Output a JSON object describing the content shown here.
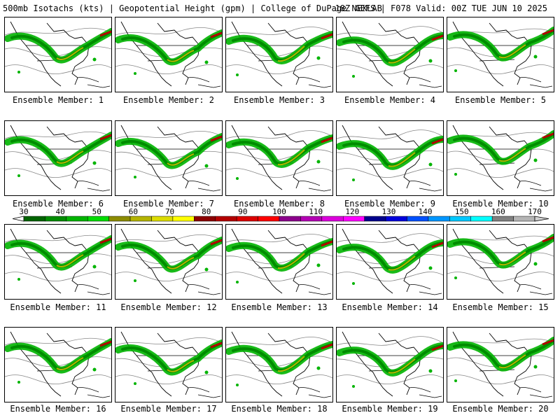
{
  "header": {
    "title_left": "500mb Isotachs (kts) | Geopotential Height (gpm) | College of DuPage NEXLAB",
    "title_right": "18Z GEFS | F078 Valid: 00Z TUE JUN 10 2025"
  },
  "members": [
    {
      "label": "Ensemble Member: 1"
    },
    {
      "label": "Ensemble Member: 2"
    },
    {
      "label": "Ensemble Member: 3"
    },
    {
      "label": "Ensemble Member: 4"
    },
    {
      "label": "Ensemble Member: 5"
    },
    {
      "label": "Ensemble Member: 6"
    },
    {
      "label": "Ensemble Member: 7"
    },
    {
      "label": "Ensemble Member: 8"
    },
    {
      "label": "Ensemble Member: 9"
    },
    {
      "label": "Ensemble Member: 10"
    },
    {
      "label": "Ensemble Member: 11"
    },
    {
      "label": "Ensemble Member: 12"
    },
    {
      "label": "Ensemble Member: 13"
    },
    {
      "label": "Ensemble Member: 14"
    },
    {
      "label": "Ensemble Member: 15"
    },
    {
      "label": "Ensemble Member: 16"
    },
    {
      "label": "Ensemble Member: 17"
    },
    {
      "label": "Ensemble Member: 18"
    },
    {
      "label": "Ensemble Member: 19"
    },
    {
      "label": "Ensemble Member: 20"
    }
  ],
  "colorbar": {
    "labels": [
      "30",
      "40",
      "50",
      "60",
      "70",
      "80",
      "90",
      "100",
      "110",
      "120",
      "130",
      "140",
      "150",
      "160",
      "170"
    ],
    "colors": [
      "#006400",
      "#008c00",
      "#00b400",
      "#00dc00",
      "#8c8c00",
      "#b4b400",
      "#dcdc00",
      "#ffff00",
      "#8c0000",
      "#b40000",
      "#dc0000",
      "#ff0000",
      "#8c008c",
      "#b400b4",
      "#dc00dc",
      "#ff00ff",
      "#00008c",
      "#0000dc",
      "#0050ff",
      "#0096ff",
      "#00c8ff",
      "#00ffff",
      "#808080",
      "#b4b4b4"
    ]
  }
}
